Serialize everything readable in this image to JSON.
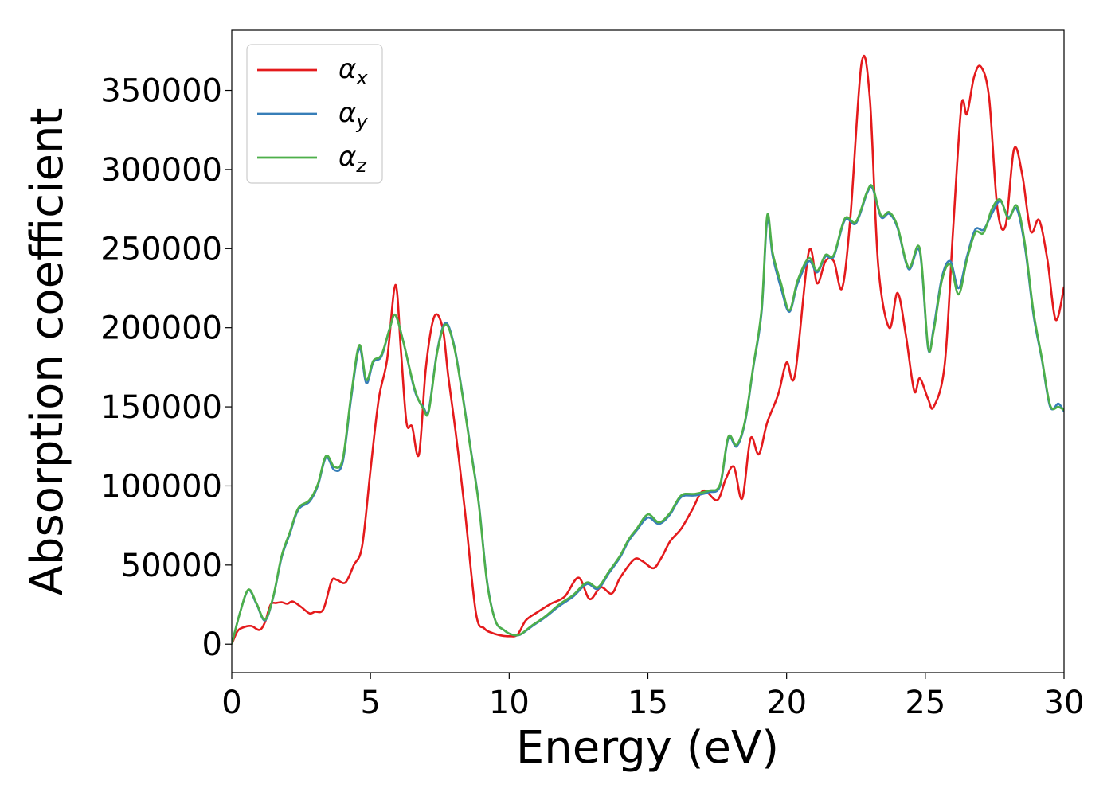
{
  "chart_data": {
    "type": "line",
    "xlabel": "Energy (eV)",
    "ylabel": "Absorption coefficient",
    "xlim": [
      0,
      30
    ],
    "ylim": [
      -18000,
      388000
    ],
    "xticks": [
      0,
      5,
      10,
      15,
      20,
      25,
      30
    ],
    "yticks": [
      0,
      50000,
      100000,
      150000,
      200000,
      250000,
      300000,
      350000
    ],
    "grid": false,
    "legend_position": "top-left",
    "series": [
      {
        "name": "α",
        "subscript": "x",
        "color": "#e41a1c",
        "x": [
          0,
          0.2,
          0.4,
          0.7,
          1.0,
          1.2,
          1.4,
          1.6,
          1.8,
          2.0,
          2.2,
          2.5,
          2.8,
          3.0,
          3.3,
          3.6,
          3.8,
          4.1,
          4.4,
          4.7,
          5.0,
          5.3,
          5.6,
          5.9,
          6.1,
          6.3,
          6.5,
          6.75,
          7.0,
          7.3,
          7.6,
          7.8,
          8.1,
          8.4,
          8.8,
          9.1,
          9.4,
          9.7,
          10.0,
          10.3,
          10.6,
          11.0,
          11.5,
          12.0,
          12.5,
          12.9,
          13.3,
          13.7,
          14.0,
          14.5,
          14.8,
          15.2,
          15.5,
          15.8,
          16.2,
          16.6,
          17.0,
          17.5,
          17.8,
          18.1,
          18.4,
          18.7,
          19.0,
          19.3,
          19.7,
          20.0,
          20.3,
          20.8,
          21.1,
          21.4,
          21.7,
          22.0,
          22.3,
          22.7,
          23.0,
          23.3,
          23.7,
          24.0,
          24.3,
          24.6,
          24.8,
          25.1,
          25.3,
          25.7,
          26.0,
          26.3,
          26.5,
          26.75,
          27.0,
          27.3,
          27.6,
          27.9,
          28.2,
          28.5,
          28.8,
          29.1,
          29.4,
          29.7,
          30.0
        ],
        "values": [
          0,
          8000,
          10500,
          11500,
          9000,
          14000,
          25000,
          26000,
          26500,
          25500,
          27000,
          23500,
          19500,
          20500,
          22000,
          40000,
          40500,
          39000,
          50000,
          62000,
          110000,
          155000,
          180000,
          227000,
          185000,
          140000,
          137500,
          120000,
          175000,
          207000,
          200000,
          170000,
          130000,
          85000,
          20000,
          10000,
          7000,
          5500,
          5000,
          6000,
          15000,
          20000,
          25500,
          30000,
          42000,
          28500,
          36000,
          32000,
          42000,
          53500,
          52500,
          48000,
          55000,
          65000,
          73000,
          85000,
          97000,
          91000,
          104000,
          112000,
          92000,
          130000,
          120000,
          140000,
          158000,
          178000,
          170000,
          248000,
          228000,
          242000,
          242000,
          225000,
          270000,
          367000,
          345000,
          240000,
          200000,
          222000,
          195000,
          160000,
          168000,
          155000,
          150000,
          177000,
          262000,
          340000,
          335000,
          358000,
          365000,
          345000,
          275000,
          265000,
          313000,
          296000,
          261000,
          268000,
          243000,
          205000,
          226000
        ]
      },
      {
        "name": "α",
        "subscript": "y",
        "color": "#377eb8",
        "x": [
          0,
          0.3,
          0.6,
          0.9,
          1.2,
          1.5,
          1.8,
          2.1,
          2.4,
          2.8,
          3.1,
          3.4,
          3.7,
          4.0,
          4.3,
          4.6,
          4.85,
          5.1,
          5.4,
          5.7,
          5.9,
          6.2,
          6.6,
          6.9,
          7.1,
          7.4,
          7.7,
          8.0,
          8.3,
          8.6,
          8.9,
          9.2,
          9.5,
          9.8,
          10.1,
          10.4,
          10.8,
          11.3,
          11.8,
          12.3,
          12.8,
          13.2,
          13.6,
          14.0,
          14.3,
          14.6,
          15.0,
          15.4,
          15.8,
          16.2,
          16.7,
          17.2,
          17.6,
          17.9,
          18.2,
          18.5,
          18.8,
          19.1,
          19.3,
          19.5,
          19.8,
          20.1,
          20.4,
          20.8,
          21.1,
          21.4,
          21.7,
          22.1,
          22.5,
          22.9,
          23.1,
          23.4,
          23.7,
          24.0,
          24.4,
          24.8,
          25.1,
          25.3,
          25.6,
          25.9,
          26.2,
          26.5,
          26.8,
          27.1,
          27.4,
          27.7,
          28.0,
          28.3,
          28.6,
          28.9,
          29.2,
          29.5,
          29.8,
          30.0
        ],
        "values": [
          0,
          20000,
          34000,
          25000,
          15000,
          30000,
          55000,
          70000,
          85000,
          90000,
          100000,
          118000,
          110000,
          115000,
          155000,
          187000,
          165000,
          178000,
          182000,
          200000,
          208000,
          190000,
          160000,
          150000,
          148000,
          185000,
          203000,
          190000,
          160000,
          125000,
          90000,
          40000,
          15000,
          9000,
          6000,
          6000,
          11000,
          17000,
          24000,
          30000,
          38000,
          35000,
          45000,
          55000,
          65000,
          72000,
          80000,
          76000,
          82000,
          93000,
          94000,
          96000,
          100000,
          130000,
          125000,
          140000,
          175000,
          210000,
          268000,
          245000,
          225000,
          210000,
          228000,
          242000,
          235000,
          245000,
          245000,
          268000,
          266000,
          285000,
          288000,
          270000,
          272000,
          263000,
          237000,
          248000,
          187000,
          200000,
          232000,
          242000,
          225000,
          245000,
          262000,
          262000,
          272000,
          280000,
          270000,
          275000,
          250000,
          208000,
          180000,
          150000,
          152000,
          147000
        ]
      },
      {
        "name": "α",
        "subscript": "z",
        "color": "#4daf4a",
        "x": [
          0,
          0.3,
          0.6,
          0.9,
          1.2,
          1.5,
          1.8,
          2.1,
          2.4,
          2.8,
          3.1,
          3.4,
          3.7,
          4.0,
          4.3,
          4.6,
          4.85,
          5.1,
          5.4,
          5.7,
          5.9,
          6.2,
          6.6,
          6.9,
          7.1,
          7.4,
          7.7,
          8.0,
          8.3,
          8.6,
          8.9,
          9.2,
          9.5,
          9.8,
          10.1,
          10.4,
          10.8,
          11.3,
          11.8,
          12.3,
          12.8,
          13.2,
          13.6,
          14.0,
          14.3,
          14.6,
          15.0,
          15.4,
          15.8,
          16.2,
          16.7,
          17.2,
          17.6,
          17.9,
          18.2,
          18.5,
          18.8,
          19.1,
          19.3,
          19.5,
          19.8,
          20.1,
          20.4,
          20.8,
          21.1,
          21.4,
          21.7,
          22.1,
          22.5,
          22.9,
          23.1,
          23.4,
          23.7,
          24.0,
          24.4,
          24.8,
          25.1,
          25.3,
          25.6,
          25.9,
          26.2,
          26.5,
          26.8,
          27.1,
          27.4,
          27.7,
          28.0,
          28.3,
          28.6,
          28.9,
          29.2,
          29.5,
          29.8,
          30.0
        ],
        "values": [
          0,
          20000,
          34500,
          25500,
          15500,
          30500,
          56000,
          71000,
          86000,
          91000,
          101000,
          119000,
          112000,
          117000,
          157000,
          189000,
          167000,
          179000,
          183000,
          200000,
          208000,
          190000,
          161000,
          149000,
          147000,
          184000,
          202000,
          189000,
          159000,
          124000,
          89000,
          39000,
          15000,
          9000,
          6000,
          6200,
          11500,
          17500,
          25000,
          31000,
          39000,
          36000,
          46000,
          56000,
          66000,
          73000,
          82000,
          77000,
          83000,
          94000,
          95000,
          97000,
          101000,
          131000,
          126000,
          141000,
          176000,
          212000,
          271000,
          247000,
          228000,
          211000,
          230000,
          244000,
          236000,
          246000,
          246000,
          269000,
          267000,
          286000,
          289000,
          271000,
          273000,
          264000,
          238000,
          250000,
          188000,
          198000,
          230000,
          240000,
          221000,
          243000,
          260000,
          260000,
          275000,
          281000,
          269000,
          277000,
          252000,
          210000,
          181000,
          151000,
          150000,
          148000
        ]
      }
    ]
  }
}
